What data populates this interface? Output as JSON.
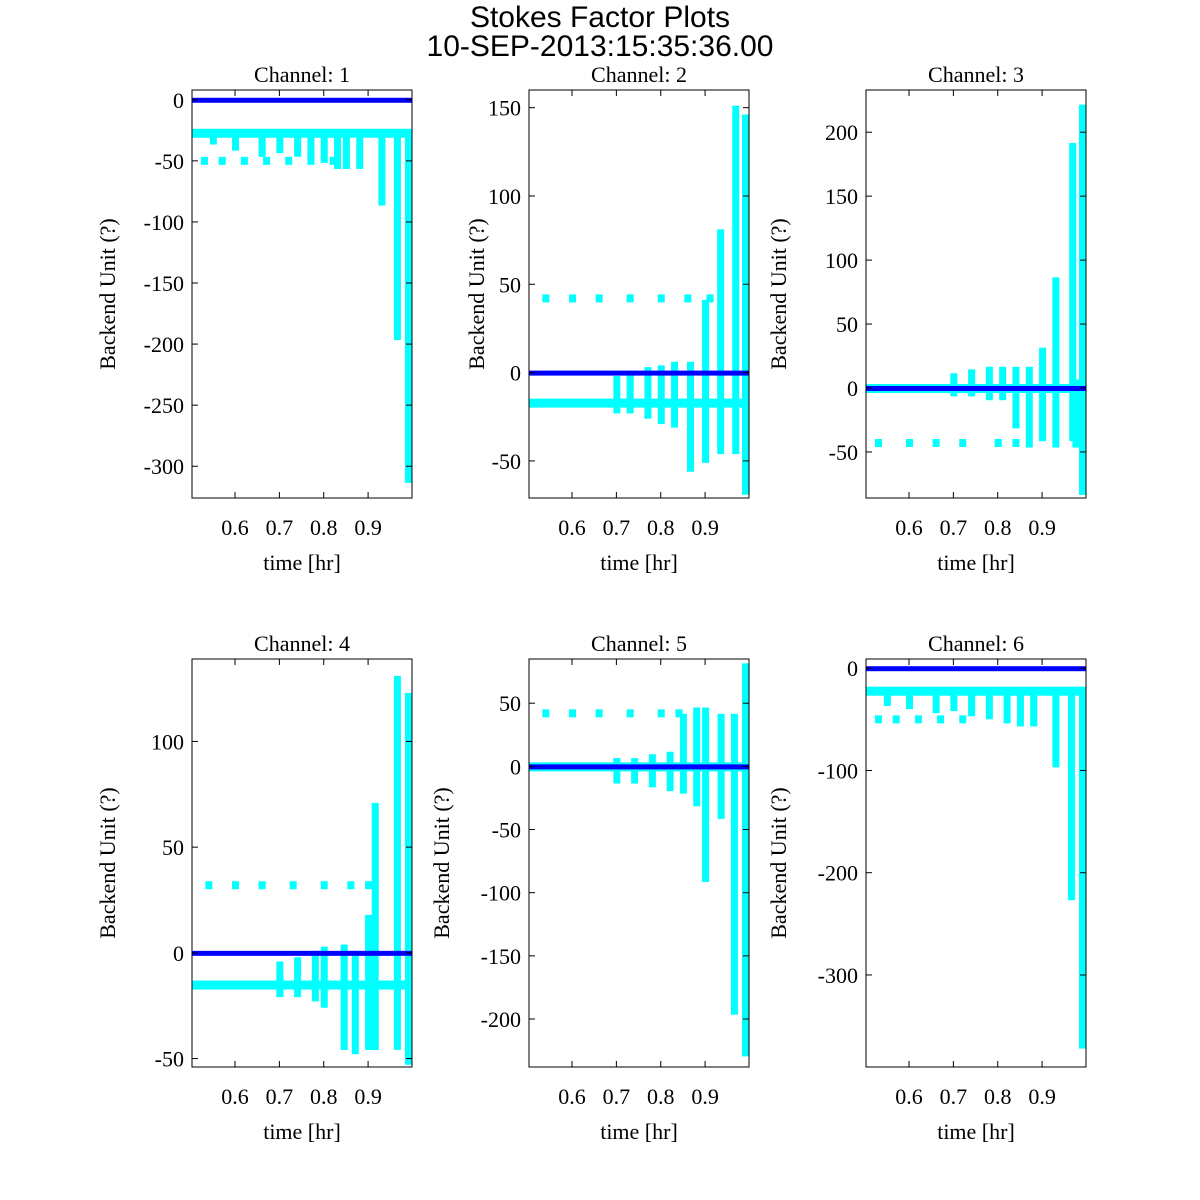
{
  "title": "Stokes Factor Plots",
  "subtitle": "10-SEP-2013:15:35:36.00",
  "colors": {
    "baseline": "#0000ff",
    "samples": "#00ffff",
    "axes": "#000000"
  },
  "chart_data": [
    {
      "type": "scatter",
      "title": "Channel: 1",
      "xlabel": "time [hr]",
      "ylabel": "Backend Unit (?)",
      "xlim": [
        0.503,
        0.999
      ],
      "ylim": [
        -326,
        8
      ],
      "xticks": [
        "0.6",
        "0.7",
        "0.8",
        "0.9"
      ],
      "yticks": [
        "0",
        "-50",
        "-100",
        "-150",
        "-200",
        "-250",
        "-300"
      ],
      "blue_level": 0,
      "cyan_base": -27,
      "dots": [
        [
          0.53,
          -50
        ],
        [
          0.57,
          -50
        ],
        [
          0.62,
          -50
        ],
        [
          0.67,
          -50
        ],
        [
          0.72,
          -50
        ],
        [
          0.77,
          -50
        ],
        [
          0.82,
          -50
        ]
      ],
      "spikes": [
        [
          0.55,
          -35,
          -27
        ],
        [
          0.6,
          -40,
          -27
        ],
        [
          0.66,
          -45,
          -27
        ],
        [
          0.7,
          -42,
          -27
        ],
        [
          0.74,
          -45,
          -27
        ],
        [
          0.77,
          -47,
          -27
        ],
        [
          0.8,
          -50,
          -27
        ],
        [
          0.83,
          -55,
          -27
        ],
        [
          0.85,
          -55,
          -27
        ],
        [
          0.88,
          -55,
          -27
        ],
        [
          0.93,
          -85,
          -27
        ],
        [
          0.965,
          -195,
          -27
        ],
        [
          0.99,
          -312,
          -27
        ]
      ]
    },
    {
      "type": "scatter",
      "title": "Channel: 2",
      "xlabel": "time [hr]",
      "ylabel": "Backend Unit (?)",
      "xlim": [
        0.503,
        0.999
      ],
      "ylim": [
        -71,
        160
      ],
      "xticks": [
        "0.6",
        "0.7",
        "0.8",
        "0.9"
      ],
      "yticks": [
        "150",
        "100",
        "50",
        "0",
        "-50"
      ],
      "blue_level": 0,
      "cyan_base": -17,
      "dots": [
        [
          0.54,
          42
        ],
        [
          0.6,
          42
        ],
        [
          0.66,
          42
        ],
        [
          0.73,
          42
        ],
        [
          0.8,
          42
        ],
        [
          0.86,
          42
        ],
        [
          0.91,
          42
        ]
      ],
      "spikes": [
        [
          0.7,
          -22,
          -3
        ],
        [
          0.73,
          -22,
          0
        ],
        [
          0.77,
          -25,
          2
        ],
        [
          0.8,
          -28,
          3
        ],
        [
          0.83,
          -30,
          5
        ],
        [
          0.866,
          -55,
          5
        ],
        [
          0.9,
          -50,
          40
        ],
        [
          0.934,
          -45,
          80
        ],
        [
          0.968,
          -45,
          150
        ],
        [
          0.99,
          -68,
          145
        ]
      ]
    },
    {
      "type": "scatter",
      "title": "Channel: 3",
      "xlabel": "time [hr]",
      "ylabel": "Backend Unit (?)",
      "xlim": [
        0.503,
        0.999
      ],
      "ylim": [
        -86,
        233
      ],
      "xticks": [
        "0.6",
        "0.7",
        "0.8",
        "0.9"
      ],
      "yticks": [
        "200",
        "150",
        "100",
        "50",
        "0",
        "-50"
      ],
      "blue_level": 0,
      "cyan_base": 0,
      "dots": [
        [
          0.53,
          -43
        ],
        [
          0.6,
          -43
        ],
        [
          0.66,
          -43
        ],
        [
          0.72,
          -43
        ],
        [
          0.8,
          -43
        ],
        [
          0.84,
          -43
        ]
      ],
      "spikes": [
        [
          0.7,
          -5,
          10
        ],
        [
          0.74,
          -5,
          13
        ],
        [
          0.78,
          -8,
          15
        ],
        [
          0.81,
          -8,
          15
        ],
        [
          0.84,
          -30,
          15
        ],
        [
          0.87,
          -45,
          15
        ],
        [
          0.9,
          -40,
          30
        ],
        [
          0.93,
          -45,
          85
        ],
        [
          0.968,
          -40,
          190
        ],
        [
          0.975,
          -45,
          5
        ],
        [
          0.99,
          -82,
          220
        ]
      ]
    },
    {
      "type": "scatter",
      "title": "Channel: 4",
      "xlabel": "time [hr]",
      "ylabel": "Backend Unit (?)",
      "xlim": [
        0.503,
        0.999
      ],
      "ylim": [
        -54,
        139
      ],
      "xticks": [
        "0.6",
        "0.7",
        "0.8",
        "0.9"
      ],
      "yticks": [
        "100",
        "50",
        "0",
        "-50"
      ],
      "blue_level": 0,
      "cyan_base": -15,
      "dots": [
        [
          0.54,
          32
        ],
        [
          0.6,
          32
        ],
        [
          0.66,
          32
        ],
        [
          0.73,
          32
        ],
        [
          0.8,
          32
        ],
        [
          0.86,
          32
        ],
        [
          0.9,
          32
        ]
      ],
      "spikes": [
        [
          0.7,
          -20,
          -5
        ],
        [
          0.74,
          -20,
          -3
        ],
        [
          0.78,
          -22,
          0
        ],
        [
          0.8,
          -25,
          2
        ],
        [
          0.845,
          -45,
          3
        ],
        [
          0.87,
          -47,
          0
        ],
        [
          0.9,
          -45,
          17
        ],
        [
          0.915,
          -45,
          70
        ],
        [
          0.965,
          -45,
          130
        ],
        [
          0.99,
          -52,
          122
        ]
      ]
    },
    {
      "type": "scatter",
      "title": "Channel: 5",
      "xlabel": "time [hr]",
      "ylabel": "Backend Unit (?)",
      "xlim": [
        0.503,
        0.999
      ],
      "ylim": [
        -238,
        85
      ],
      "xticks": [
        "0.6",
        "0.7",
        "0.8",
        "0.9"
      ],
      "yticks": [
        "50",
        "0",
        "-50",
        "-100",
        "-150",
        "-200"
      ],
      "blue_level": 0,
      "cyan_base": 0,
      "dots": [
        [
          0.54,
          42
        ],
        [
          0.6,
          42
        ],
        [
          0.66,
          42
        ],
        [
          0.73,
          42
        ],
        [
          0.8,
          42
        ],
        [
          0.84,
          42
        ]
      ],
      "spikes": [
        [
          0.7,
          -12,
          5
        ],
        [
          0.74,
          -12,
          5
        ],
        [
          0.78,
          -15,
          8
        ],
        [
          0.82,
          -18,
          10
        ],
        [
          0.85,
          -20,
          40
        ],
        [
          0.88,
          -30,
          45
        ],
        [
          0.9,
          -90,
          45
        ],
        [
          0.935,
          -40,
          40
        ],
        [
          0.965,
          -195,
          40
        ],
        [
          0.99,
          -228,
          80
        ]
      ]
    },
    {
      "type": "scatter",
      "title": "Channel: 6",
      "xlabel": "time [hr]",
      "ylabel": "Backend Unit (?)",
      "xlim": [
        0.503,
        0.999
      ],
      "ylim": [
        -390,
        9
      ],
      "xticks": [
        "0.6",
        "0.7",
        "0.8",
        "0.9"
      ],
      "yticks": [
        "0",
        "-100",
        "-200",
        "-300"
      ],
      "blue_level": 0,
      "cyan_base": -22,
      "dots": [
        [
          0.53,
          -50
        ],
        [
          0.57,
          -50
        ],
        [
          0.62,
          -50
        ],
        [
          0.67,
          -50
        ],
        [
          0.72,
          -50
        ]
      ],
      "spikes": [
        [
          0.55,
          -35,
          -22
        ],
        [
          0.6,
          -38,
          -22
        ],
        [
          0.66,
          -42,
          -22
        ],
        [
          0.7,
          -40,
          -22
        ],
        [
          0.74,
          -45,
          -22
        ],
        [
          0.78,
          -48,
          -22
        ],
        [
          0.82,
          -52,
          -22
        ],
        [
          0.85,
          -55,
          -22
        ],
        [
          0.88,
          -55,
          -22
        ],
        [
          0.93,
          -95,
          -22
        ],
        [
          0.965,
          -225,
          -22
        ],
        [
          0.99,
          -370,
          -22
        ]
      ]
    }
  ]
}
